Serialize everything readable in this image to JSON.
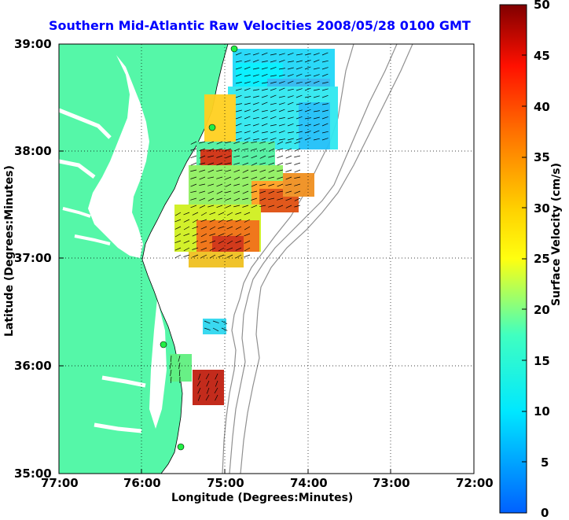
{
  "title": "Southern Mid-Atlantic Raw Velocities 2008/05/28 0100 GMT",
  "xlabel": "Longitude (Degrees:Minutes)",
  "ylabel": "Latitude (Degrees:Minutes)",
  "colorbar_label": "Surface Velocity (cm/s)",
  "x_ticks": [
    "77:00",
    "76:00",
    "75:00",
    "74:00",
    "73:00",
    "72:00"
  ],
  "y_ticks": [
    "39:00",
    "38:00",
    "37:00",
    "36:00",
    "35:00"
  ],
  "colorbar_ticks": [
    "50",
    "45",
    "40",
    "35",
    "30",
    "25",
    "20",
    "15",
    "10",
    "5",
    "0"
  ],
  "colors": {
    "land": "#55f7a8",
    "title": "#0000ff",
    "bathymetry": "#909090",
    "stations": "#22ee44"
  },
  "map": {
    "lon_range": [
      -77,
      -72
    ],
    "lat_range": [
      35,
      39
    ],
    "colorbar_range": [
      0,
      50
    ],
    "grid": "dotted"
  }
}
